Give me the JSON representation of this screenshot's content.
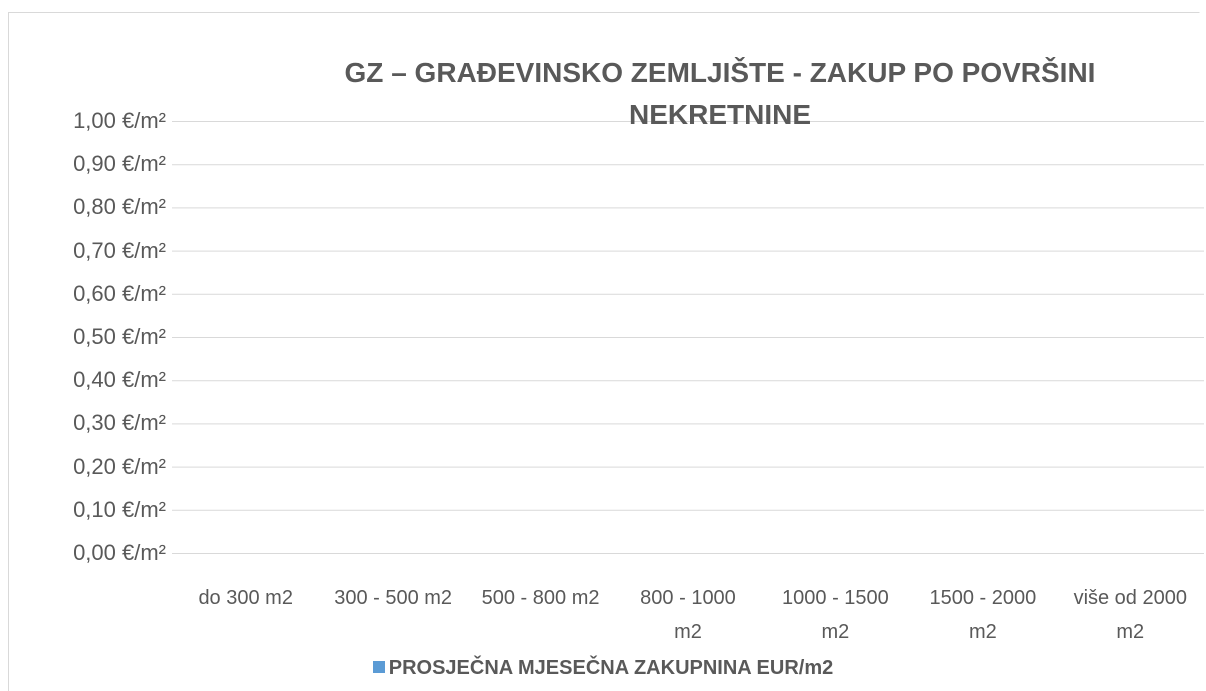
{
  "chart_data": {
    "type": "bar",
    "title": "GZ – GRAĐEVINSKO ZEMLJIŠTE - ZAKUP PO POVRŠINI NEKRETNINE",
    "categories": [
      "do 300 m2",
      "300 - 500 m2",
      "500 - 800 m2",
      "800 - 1000 m2",
      "1000 - 1500 m2",
      "1500 - 2000 m2",
      "više od 2000 m2"
    ],
    "series": [
      {
        "name": "PROSJEČNA MJESEČNA ZAKUPNINA EUR/m2",
        "color": "#5b9bd5",
        "values": [
          0,
          0,
          0,
          0,
          0,
          0,
          0
        ]
      }
    ],
    "ylim": [
      0,
      1
    ],
    "yticks": [
      {
        "value": 0,
        "label": "0,00 €/m²"
      },
      {
        "value": 0.1,
        "label": "0,10 €/m²"
      },
      {
        "value": 0.2,
        "label": "0,20 €/m²"
      },
      {
        "value": 0.3,
        "label": "0,30 €/m²"
      },
      {
        "value": 0.4,
        "label": "0,40 €/m²"
      },
      {
        "value": 0.5,
        "label": "0,50 €/m²"
      },
      {
        "value": 0.6,
        "label": "0,60 €/m²"
      },
      {
        "value": 0.7,
        "label": "0,70 €/m²"
      },
      {
        "value": 0.8,
        "label": "0,80 €/m²"
      },
      {
        "value": 0.9,
        "label": "0,90 €/m²"
      },
      {
        "value": 1,
        "label": "1,00 €/m²"
      }
    ],
    "grid": true,
    "legend": "bottom"
  }
}
